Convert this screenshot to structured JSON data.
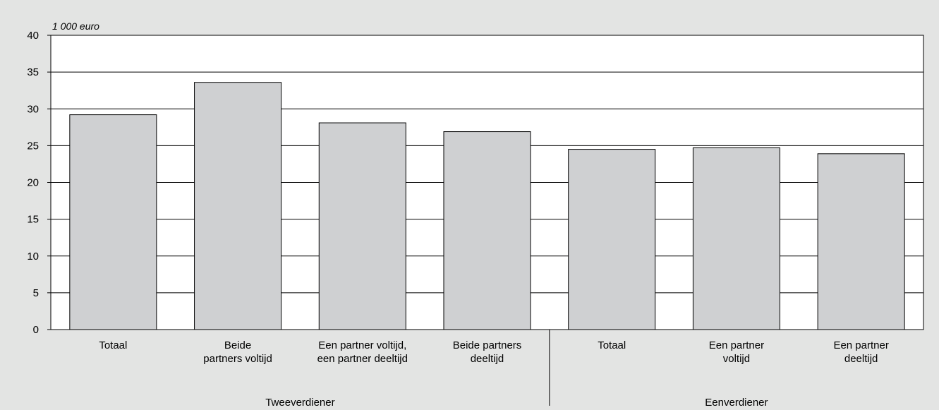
{
  "chart_data": {
    "type": "bar",
    "unit_label": "1 000 euro",
    "ylim": [
      0,
      40
    ],
    "yticks": [
      0,
      5,
      10,
      15,
      20,
      25,
      30,
      35,
      40
    ],
    "grid": true,
    "categories": [
      [
        "Totaal"
      ],
      [
        "Beide",
        "partners voltijd"
      ],
      [
        "Een partner voltijd,",
        "een partner deeltijd"
      ],
      [
        "Beide partners",
        "deeltijd"
      ],
      [
        "Totaal"
      ],
      [
        "Een partner",
        "voltijd"
      ],
      [
        "Een partner",
        "deeltijd"
      ]
    ],
    "values": [
      29.2,
      33.6,
      28.1,
      26.9,
      24.5,
      24.7,
      23.9
    ],
    "groups": [
      {
        "label": "Tweeverdiener",
        "count": 4
      },
      {
        "label": "Eenverdiener",
        "count": 3
      }
    ],
    "colors": {
      "bar": "#cfd0d2",
      "background": "#e3e4e3",
      "plot": "#ffffff"
    }
  }
}
